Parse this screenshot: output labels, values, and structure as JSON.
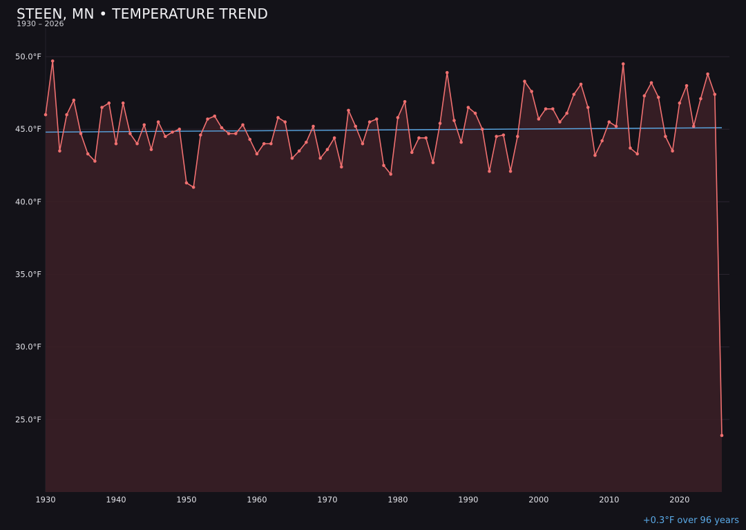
{
  "colors": {
    "background": "#131218",
    "series_line": "#f07070",
    "area_fill": "#3a1f26",
    "trend_line": "#5aa9e6",
    "grid": "#2a2430",
    "axis_text": "#e0e0e6"
  },
  "chart_data": {
    "type": "line",
    "title": "STEEN, MN • TEMPERATURE TREND",
    "subtitle": "1930 – 2026",
    "xlabel": "",
    "ylabel": "",
    "xlim": [
      1930,
      2026
    ],
    "ylim": [
      20,
      52
    ],
    "grid": true,
    "y_ticks": [
      25,
      30,
      35,
      40,
      45,
      50
    ],
    "y_tick_labels": [
      "25.0°F",
      "30.0°F",
      "35.0°F",
      "40.0°F",
      "45.0°F",
      "50.0°F"
    ],
    "x_ticks": [
      1930,
      1940,
      1950,
      1960,
      1970,
      1980,
      1990,
      2000,
      2010,
      2020
    ],
    "x_tick_labels": [
      "1930",
      "1940",
      "1950",
      "1960",
      "1970",
      "1980",
      "1990",
      "2000",
      "2010",
      "2020"
    ],
    "series": [
      {
        "x": [
          1930,
          1931,
          1932,
          1933,
          1934,
          1935,
          1936,
          1937,
          1938,
          1939,
          1940,
          1941,
          1942,
          1943,
          1944,
          1945,
          1946,
          1947,
          1948,
          1949,
          1950,
          1951,
          1952,
          1953,
          1954,
          1955,
          1956,
          1957,
          1958,
          1959,
          1960,
          1961,
          1962,
          1963,
          1964,
          1965,
          1966,
          1967,
          1968,
          1969,
          1970,
          1971,
          1972,
          1973,
          1974,
          1975,
          1976,
          1977,
          1978,
          1979,
          1980,
          1981,
          1982,
          1983,
          1984,
          1985,
          1986,
          1987,
          1988,
          1989,
          1990,
          1991,
          1992,
          1993,
          1994,
          1995,
          1996,
          1997,
          1998,
          1999,
          2000,
          2001,
          2002,
          2003,
          2004,
          2005,
          2006,
          2007,
          2008,
          2009,
          2010,
          2011,
          2012,
          2013,
          2014,
          2015,
          2016,
          2017,
          2018,
          2019,
          2020,
          2021,
          2022,
          2023,
          2024,
          2025,
          2026
        ],
        "values": [
          46.0,
          49.7,
          43.5,
          46.0,
          47.0,
          44.7,
          43.3,
          42.8,
          46.5,
          46.8,
          44.0,
          46.8,
          44.7,
          44.0,
          45.3,
          43.6,
          45.5,
          44.5,
          44.8,
          45.0,
          41.3,
          41.0,
          44.6,
          45.7,
          45.9,
          45.1,
          44.7,
          44.7,
          45.3,
          44.3,
          43.3,
          44.0,
          44.0,
          45.8,
          45.5,
          43.0,
          43.5,
          44.1,
          45.2,
          43.0,
          43.6,
          44.4,
          42.4,
          46.3,
          45.2,
          44.0,
          45.5,
          45.7,
          42.5,
          41.9,
          45.8,
          46.9,
          43.4,
          44.4,
          44.4,
          42.7,
          45.4,
          48.9,
          45.6,
          44.1,
          46.5,
          46.1,
          45.0,
          42.1,
          44.5,
          44.6,
          42.1,
          44.5,
          48.3,
          47.6,
          45.7,
          46.4,
          46.4,
          45.5,
          46.1,
          47.4,
          48.1,
          46.5,
          43.2,
          44.2,
          45.5,
          45.2,
          49.5,
          43.7,
          43.3,
          47.3,
          48.2,
          47.2,
          44.5,
          43.5,
          46.8,
          48.0,
          45.2,
          47.1,
          48.8,
          47.4,
          23.9
        ]
      }
    ],
    "trend": {
      "x": [
        1930,
        2026
      ],
      "values": [
        44.8,
        45.1
      ]
    },
    "annotations": [
      "+0.3°F over 96 years"
    ]
  }
}
